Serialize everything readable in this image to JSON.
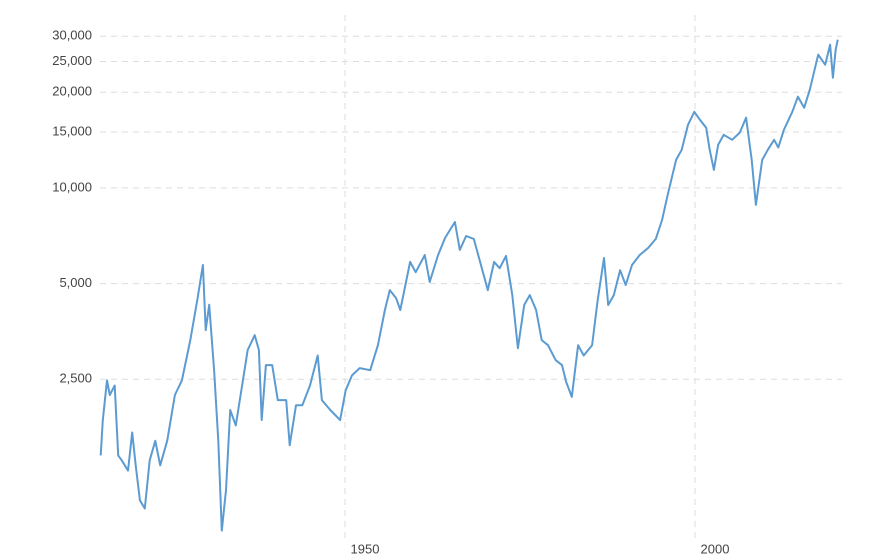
{
  "chart_data": {
    "type": "line",
    "log_y": true,
    "grid": true,
    "x": [
      1915.1,
      1915.4,
      1916,
      1916.4,
      1917.1,
      1917.6,
      1918.1,
      1919,
      1919.6,
      1920.1,
      1920.7,
      1921.4,
      1922.1,
      1922.9,
      1923.6,
      1924.6,
      1925.7,
      1926.7,
      1927.9,
      1928.9,
      1929.7,
      1930.1,
      1930.6,
      1931.3,
      1931.9,
      1932.4,
      1933,
      1933.6,
      1934.4,
      1935.3,
      1936.1,
      1937.1,
      1937.7,
      1938.1,
      1938.7,
      1939.6,
      1940.4,
      1941.6,
      1942.1,
      1943,
      1943.9,
      1945,
      1946.1,
      1946.7,
      1947.9,
      1949.3,
      1950.1,
      1951,
      1952.1,
      1953.6,
      1954.7,
      1955.7,
      1956.4,
      1957.3,
      1957.9,
      1959.3,
      1960.1,
      1961.4,
      1962.1,
      1963.3,
      1964.3,
      1965.7,
      1966.4,
      1967.3,
      1968.4,
      1969.3,
      1970.4,
      1971.3,
      1972.1,
      1973,
      1973.9,
      1974.7,
      1975.6,
      1976.4,
      1977.3,
      1978.1,
      1979,
      1980.1,
      1981,
      1981.6,
      1982.4,
      1983.3,
      1984.1,
      1985.3,
      1986.1,
      1987,
      1987.6,
      1988.4,
      1989.3,
      1990.1,
      1991,
      1992.1,
      1993.3,
      1994.4,
      1995.3,
      1996.1,
      1997.3,
      1998.1,
      1999,
      1999.9,
      2000.7,
      2001.6,
      2002.1,
      2002.7,
      2003.3,
      2004.1,
      2005.3,
      2006.4,
      2007.3,
      2008.1,
      2008.7,
      2009.6,
      2010.4,
      2011.3,
      2011.9,
      2012.7,
      2013.9,
      2014.7,
      2015.6,
      2016.4,
      2017.6,
      2018.6,
      2019.3,
      2019.7,
      2020.1,
      2020.4
    ],
    "series": [
      {
        "color": "#5b9bd1",
        "values": [
          1440,
          1860,
          2480,
          2230,
          2390,
          1440,
          1390,
          1290,
          1700,
          1340,
          1040,
          980,
          1390,
          1600,
          1340,
          1600,
          2230,
          2480,
          3320,
          4440,
          5720,
          3570,
          4290,
          2670,
          1600,
          835,
          1120,
          2000,
          1790,
          2390,
          3090,
          3440,
          3090,
          1860,
          2770,
          2770,
          2150,
          2150,
          1550,
          2070,
          2070,
          2390,
          2970,
          2150,
          2000,
          1860,
          2310,
          2570,
          2710,
          2670,
          3200,
          4130,
          4770,
          4500,
          4130,
          5850,
          5430,
          6150,
          5060,
          6150,
          6960,
          7810,
          6380,
          7060,
          6910,
          5850,
          4770,
          5850,
          5590,
          6110,
          4600,
          3130,
          4280,
          4600,
          4130,
          3320,
          3200,
          2870,
          2770,
          2450,
          2200,
          3200,
          2970,
          3200,
          4440,
          6020,
          4280,
          4600,
          5510,
          4950,
          5720,
          6150,
          6470,
          6910,
          7930,
          9510,
          12250,
          13180,
          15800,
          17360,
          16380,
          15460,
          13180,
          11390,
          13660,
          14690,
          14170,
          14930,
          16630,
          12250,
          8840,
          12250,
          13180,
          14170,
          13400,
          15230,
          17360,
          19360,
          17880,
          20370,
          26260,
          24420,
          28230,
          22220,
          27260,
          29270
        ]
      }
    ],
    "xlim": [
      1915,
      2021
    ],
    "xticks": [
      1950,
      2000
    ],
    "ylim": [
      780,
      35000
    ],
    "yticks": [
      {
        "value": 2500,
        "label": "2,500"
      },
      {
        "value": 5000,
        "label": "5,000"
      },
      {
        "value": 10000,
        "label": "10,000"
      },
      {
        "value": 15000,
        "label": "15,000"
      },
      {
        "value": 20000,
        "label": "20,000"
      },
      {
        "value": 25000,
        "label": "25,000"
      },
      {
        "value": 30000,
        "label": "30,000"
      }
    ]
  }
}
